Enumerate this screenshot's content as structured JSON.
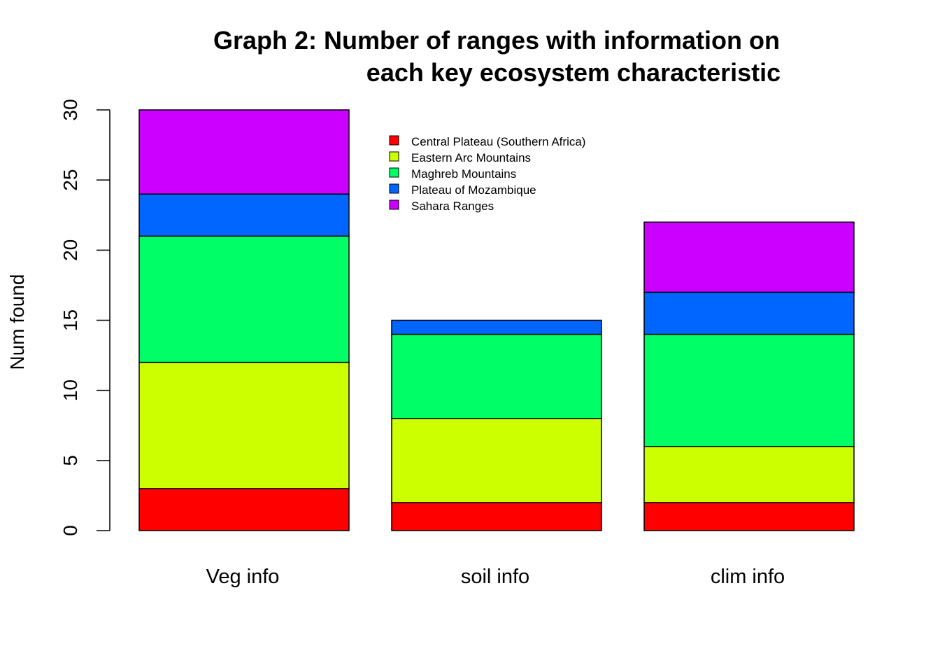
{
  "chart_data": {
    "type": "bar",
    "stacked": true,
    "title_lines": [
      "Graph 2: Number of ranges with information on",
      "each key ecosystem characteristic"
    ],
    "xlabel": "",
    "ylabel": "Num found",
    "ylim": [
      0,
      30
    ],
    "yticks": [
      0,
      5,
      10,
      15,
      20,
      25,
      30
    ],
    "grid": false,
    "legend_position": "top-center",
    "categories": [
      "Veg info",
      "soil info",
      "clim info"
    ],
    "series": [
      {
        "name": "Central Plateau (Southern Africa)",
        "color": "#ff0000",
        "values": [
          3,
          2,
          2
        ]
      },
      {
        "name": "Eastern Arc Mountains",
        "color": "#ccff00",
        "values": [
          9,
          6,
          4
        ]
      },
      {
        "name": "Maghreb Mountains",
        "color": "#00ff66",
        "values": [
          9,
          6,
          8
        ]
      },
      {
        "name": "Plateau of Mozambique",
        "color": "#0066ff",
        "values": [
          3,
          1,
          3
        ]
      },
      {
        "name": "Sahara Ranges",
        "color": "#cc00ff",
        "values": [
          6,
          0,
          5
        ]
      }
    ]
  }
}
